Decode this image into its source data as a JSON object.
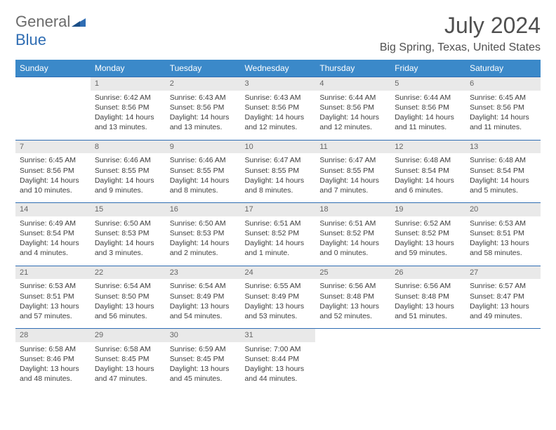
{
  "logo": {
    "grey": "General",
    "blue": "Blue"
  },
  "title": "July 2024",
  "location": "Big Spring, Texas, United States",
  "header_color": "#3b89c9",
  "row_border_color": "#2f6db3",
  "daynum_bg": "#e9e9e9",
  "dow_labels": [
    "Sunday",
    "Monday",
    "Tuesday",
    "Wednesday",
    "Thursday",
    "Friday",
    "Saturday"
  ],
  "weeks": [
    [
      null,
      {
        "n": "1",
        "sr": "6:42 AM",
        "ss": "8:56 PM",
        "dl": "14 hours and 13 minutes."
      },
      {
        "n": "2",
        "sr": "6:43 AM",
        "ss": "8:56 PM",
        "dl": "14 hours and 13 minutes."
      },
      {
        "n": "3",
        "sr": "6:43 AM",
        "ss": "8:56 PM",
        "dl": "14 hours and 12 minutes."
      },
      {
        "n": "4",
        "sr": "6:44 AM",
        "ss": "8:56 PM",
        "dl": "14 hours and 12 minutes."
      },
      {
        "n": "5",
        "sr": "6:44 AM",
        "ss": "8:56 PM",
        "dl": "14 hours and 11 minutes."
      },
      {
        "n": "6",
        "sr": "6:45 AM",
        "ss": "8:56 PM",
        "dl": "14 hours and 11 minutes."
      }
    ],
    [
      {
        "n": "7",
        "sr": "6:45 AM",
        "ss": "8:56 PM",
        "dl": "14 hours and 10 minutes."
      },
      {
        "n": "8",
        "sr": "6:46 AM",
        "ss": "8:55 PM",
        "dl": "14 hours and 9 minutes."
      },
      {
        "n": "9",
        "sr": "6:46 AM",
        "ss": "8:55 PM",
        "dl": "14 hours and 8 minutes."
      },
      {
        "n": "10",
        "sr": "6:47 AM",
        "ss": "8:55 PM",
        "dl": "14 hours and 8 minutes."
      },
      {
        "n": "11",
        "sr": "6:47 AM",
        "ss": "8:55 PM",
        "dl": "14 hours and 7 minutes."
      },
      {
        "n": "12",
        "sr": "6:48 AM",
        "ss": "8:54 PM",
        "dl": "14 hours and 6 minutes."
      },
      {
        "n": "13",
        "sr": "6:48 AM",
        "ss": "8:54 PM",
        "dl": "14 hours and 5 minutes."
      }
    ],
    [
      {
        "n": "14",
        "sr": "6:49 AM",
        "ss": "8:54 PM",
        "dl": "14 hours and 4 minutes."
      },
      {
        "n": "15",
        "sr": "6:50 AM",
        "ss": "8:53 PM",
        "dl": "14 hours and 3 minutes."
      },
      {
        "n": "16",
        "sr": "6:50 AM",
        "ss": "8:53 PM",
        "dl": "14 hours and 2 minutes."
      },
      {
        "n": "17",
        "sr": "6:51 AM",
        "ss": "8:52 PM",
        "dl": "14 hours and 1 minute."
      },
      {
        "n": "18",
        "sr": "6:51 AM",
        "ss": "8:52 PM",
        "dl": "14 hours and 0 minutes."
      },
      {
        "n": "19",
        "sr": "6:52 AM",
        "ss": "8:52 PM",
        "dl": "13 hours and 59 minutes."
      },
      {
        "n": "20",
        "sr": "6:53 AM",
        "ss": "8:51 PM",
        "dl": "13 hours and 58 minutes."
      }
    ],
    [
      {
        "n": "21",
        "sr": "6:53 AM",
        "ss": "8:51 PM",
        "dl": "13 hours and 57 minutes."
      },
      {
        "n": "22",
        "sr": "6:54 AM",
        "ss": "8:50 PM",
        "dl": "13 hours and 56 minutes."
      },
      {
        "n": "23",
        "sr": "6:54 AM",
        "ss": "8:49 PM",
        "dl": "13 hours and 54 minutes."
      },
      {
        "n": "24",
        "sr": "6:55 AM",
        "ss": "8:49 PM",
        "dl": "13 hours and 53 minutes."
      },
      {
        "n": "25",
        "sr": "6:56 AM",
        "ss": "8:48 PM",
        "dl": "13 hours and 52 minutes."
      },
      {
        "n": "26",
        "sr": "6:56 AM",
        "ss": "8:48 PM",
        "dl": "13 hours and 51 minutes."
      },
      {
        "n": "27",
        "sr": "6:57 AM",
        "ss": "8:47 PM",
        "dl": "13 hours and 49 minutes."
      }
    ],
    [
      {
        "n": "28",
        "sr": "6:58 AM",
        "ss": "8:46 PM",
        "dl": "13 hours and 48 minutes."
      },
      {
        "n": "29",
        "sr": "6:58 AM",
        "ss": "8:45 PM",
        "dl": "13 hours and 47 minutes."
      },
      {
        "n": "30",
        "sr": "6:59 AM",
        "ss": "8:45 PM",
        "dl": "13 hours and 45 minutes."
      },
      {
        "n": "31",
        "sr": "7:00 AM",
        "ss": "8:44 PM",
        "dl": "13 hours and 44 minutes."
      },
      null,
      null,
      null
    ]
  ]
}
